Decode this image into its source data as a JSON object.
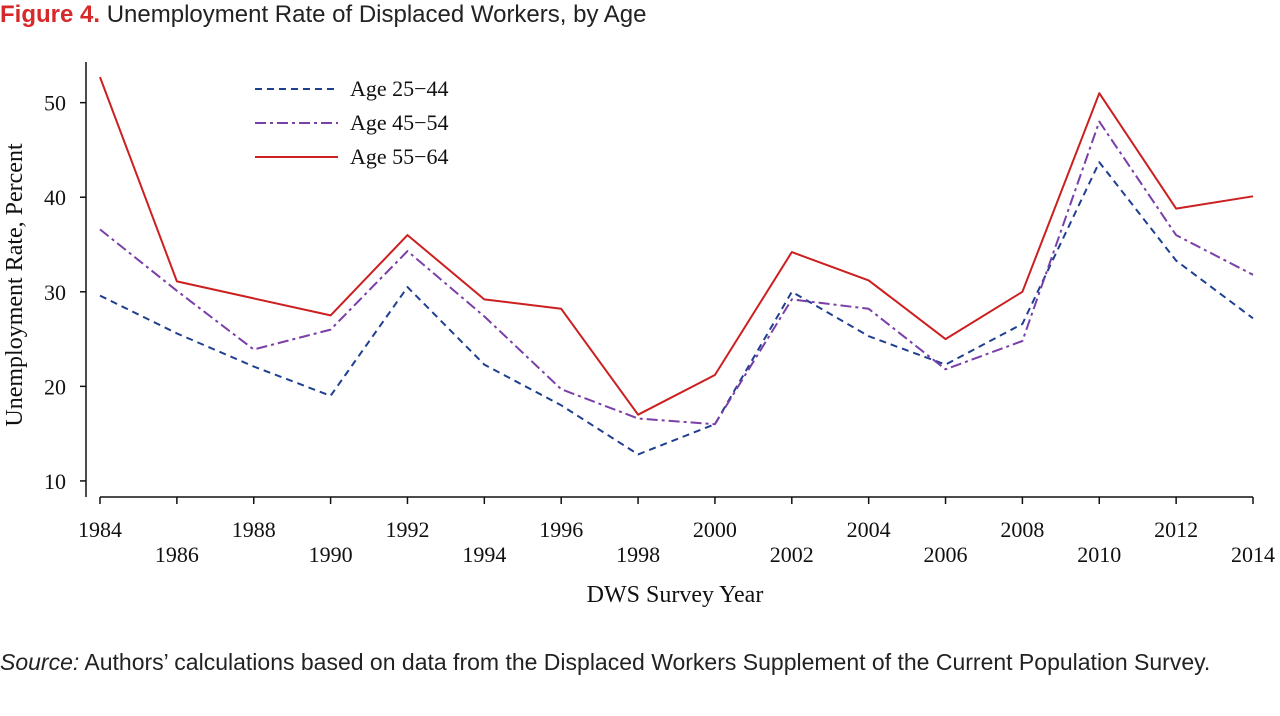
{
  "figure": {
    "label": "Figure 4.",
    "title": "Unemployment Rate of Displaced Workers, by Age"
  },
  "source": {
    "label": "Source:",
    "text": "Authors’ calculations based on data from the Displaced Workers Supplement of the Current Population Survey."
  },
  "colors": {
    "figure_label": "#d62a2a",
    "age_25_44": "#1f3f8f",
    "age_45_54": "#7b3fa8",
    "age_55_64": "#cc1f1f"
  },
  "chart_data": {
    "type": "line",
    "xlabel": "DWS Survey Year",
    "ylabel": "Unemployment Rate, Percent",
    "x": [
      1984,
      1986,
      1988,
      1990,
      1992,
      1994,
      1996,
      1998,
      2000,
      2002,
      2004,
      2006,
      2008,
      2010,
      2012,
      2014
    ],
    "x_tick_labels": [
      "1984",
      "1986",
      "1988",
      "1990",
      "1992",
      "1994",
      "1996",
      "1998",
      "2000",
      "2002",
      "2004",
      "2006",
      "2008",
      "2010",
      "2012",
      "2014"
    ],
    "y_ticks": [
      10,
      20,
      30,
      40,
      50
    ],
    "y_tick_labels": [
      "10",
      "20",
      "30",
      "40",
      "50"
    ],
    "xlim": [
      1984,
      2014
    ],
    "ylim": [
      8.3,
      54.3
    ],
    "grid": false,
    "legend_position": "top-left",
    "series": [
      {
        "name": "Age 25−44",
        "style": "dashed",
        "color": "#1f3f8f",
        "values": [
          29.6,
          25.6,
          22.1,
          19.0,
          30.5,
          22.3,
          18.0,
          12.8,
          16.0,
          30.0,
          25.3,
          22.3,
          26.6,
          43.7,
          33.3,
          27.2
        ]
      },
      {
        "name": "Age 45−54",
        "style": "dashdot",
        "color": "#7b3fa8",
        "values": [
          36.6,
          30.1,
          23.9,
          26.0,
          34.3,
          27.4,
          19.7,
          16.6,
          16.0,
          29.2,
          28.2,
          21.8,
          24.8,
          48.0,
          36.0,
          31.8
        ]
      },
      {
        "name": "Age 55−64",
        "style": "solid",
        "color": "#cc1f1f",
        "values": [
          52.7,
          31.1,
          29.3,
          27.5,
          36.0,
          29.2,
          28.2,
          17.0,
          21.2,
          34.2,
          31.2,
          25.0,
          30.0,
          51.0,
          38.8,
          40.1
        ]
      }
    ]
  }
}
